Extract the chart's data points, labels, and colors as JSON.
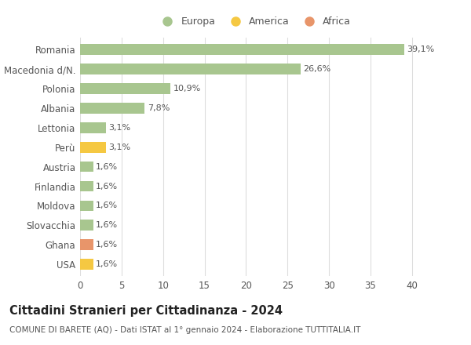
{
  "categories": [
    "Romania",
    "Macedonia d/N.",
    "Polonia",
    "Albania",
    "Lettonia",
    "Perù",
    "Austria",
    "Finlandia",
    "Moldova",
    "Slovacchia",
    "Ghana",
    "USA"
  ],
  "values": [
    39.1,
    26.6,
    10.9,
    7.8,
    3.1,
    3.1,
    1.6,
    1.6,
    1.6,
    1.6,
    1.6,
    1.6
  ],
  "labels": [
    "39,1%",
    "26,6%",
    "10,9%",
    "7,8%",
    "3,1%",
    "3,1%",
    "1,6%",
    "1,6%",
    "1,6%",
    "1,6%",
    "1,6%",
    "1,6%"
  ],
  "continents": [
    "Europa",
    "Europa",
    "Europa",
    "Europa",
    "Europa",
    "America",
    "Europa",
    "Europa",
    "Europa",
    "Europa",
    "Africa",
    "America"
  ],
  "colors": {
    "Europa": "#a8c68f",
    "America": "#f5c842",
    "Africa": "#e8956a"
  },
  "legend_labels": [
    "Europa",
    "America",
    "Africa"
  ],
  "xlim": [
    0,
    42
  ],
  "xticks": [
    0,
    5,
    10,
    15,
    20,
    25,
    30,
    35,
    40
  ],
  "title": "Cittadini Stranieri per Cittadinanza - 2024",
  "subtitle": "COMUNE DI BARETE (AQ) - Dati ISTAT al 1° gennaio 2024 - Elaborazione TUTTITALIA.IT",
  "bg_color": "#ffffff",
  "grid_color": "#dddddd",
  "bar_height": 0.55,
  "label_fontsize": 8.0,
  "tick_fontsize": 8.5,
  "title_fontsize": 10.5,
  "subtitle_fontsize": 7.5
}
